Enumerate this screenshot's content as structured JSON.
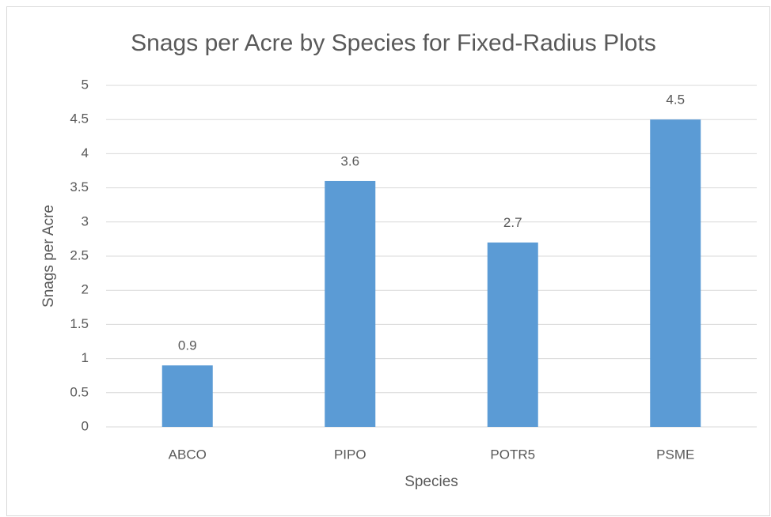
{
  "chart_data": {
    "type": "bar",
    "title": "Snags per Acre by Species for Fixed-Radius Plots",
    "x_label": "Species",
    "y_label": "Snags per Acre",
    "categories": [
      "ABCO",
      "PIPO",
      "POTR5",
      "PSME"
    ],
    "values": [
      0.9,
      3.6,
      2.7,
      4.5
    ],
    "color": "#5b9bd5",
    "ylim": [
      0,
      5
    ],
    "yticks": [
      0,
      0.5,
      1,
      1.5,
      2,
      2.5,
      3,
      3.5,
      4,
      4.5,
      5
    ],
    "grid": true,
    "data_labels": true
  }
}
